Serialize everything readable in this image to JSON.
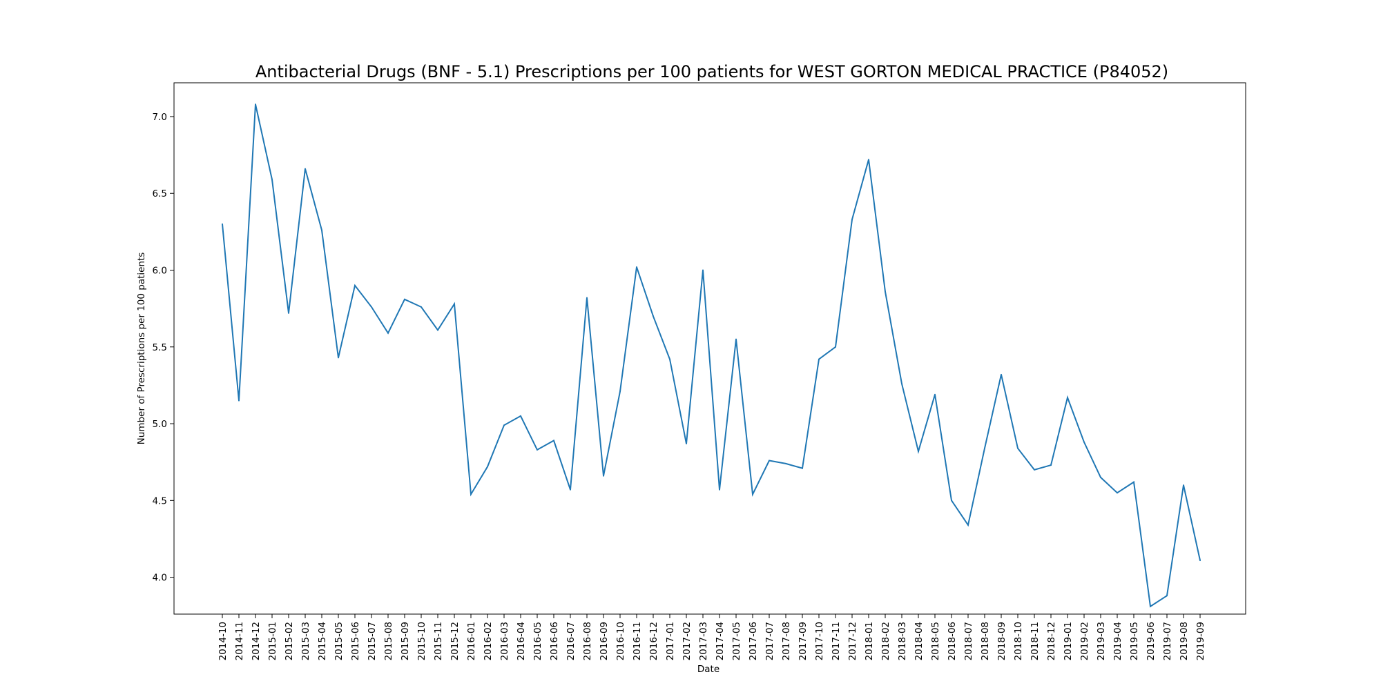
{
  "chart_data": {
    "type": "line",
    "title": "Antibacterial Drugs (BNF - 5.1) Prescriptions per 100 patients for WEST GORTON MEDICAL PRACTICE (P84052)",
    "xlabel": "Date",
    "ylabel": "Number of Prescriptions per 100 patients",
    "ylim": [
      3.76,
      7.22
    ],
    "yticks": [
      "4.0",
      "4.5",
      "5.0",
      "5.5",
      "6.0",
      "6.5",
      "7.0"
    ],
    "grid": false,
    "line_color": "#1f77b4",
    "categories": [
      "2014-10",
      "2014-11",
      "2014-12",
      "2015-01",
      "2015-02",
      "2015-03",
      "2015-04",
      "2015-05",
      "2015-06",
      "2015-07",
      "2015-08",
      "2015-09",
      "2015-10",
      "2015-11",
      "2015-12",
      "2016-01",
      "2016-02",
      "2016-03",
      "2016-04",
      "2016-05",
      "2016-06",
      "2016-07",
      "2016-08",
      "2016-09",
      "2016-10",
      "2016-11",
      "2016-12",
      "2017-01",
      "2017-02",
      "2017-03",
      "2017-04",
      "2017-05",
      "2017-06",
      "2017-07",
      "2017-08",
      "2017-09",
      "2017-10",
      "2017-11",
      "2017-12",
      "2018-01",
      "2018-02",
      "2018-03",
      "2018-04",
      "2018-05",
      "2018-06",
      "2018-07",
      "2018-08",
      "2018-09",
      "2018-10",
      "2018-11",
      "2018-12",
      "2019-01",
      "2019-02",
      "2019-03",
      "2019-04",
      "2019-05",
      "2019-06",
      "2019-07",
      "2019-08",
      "2019-09"
    ],
    "values": [
      6.3,
      5.15,
      7.08,
      6.59,
      5.72,
      6.66,
      6.26,
      5.43,
      5.9,
      5.76,
      5.59,
      5.81,
      5.76,
      5.61,
      5.78,
      4.54,
      4.72,
      4.99,
      5.05,
      4.83,
      4.89,
      4.57,
      5.82,
      4.66,
      5.21,
      6.02,
      5.7,
      5.42,
      4.87,
      6.0,
      4.57,
      5.55,
      4.54,
      4.76,
      4.74,
      4.71,
      5.42,
      5.5,
      6.33,
      6.72,
      5.86,
      5.26,
      4.82,
      5.19,
      4.5,
      4.34,
      4.84,
      5.32,
      4.84,
      4.7,
      4.73,
      5.17,
      4.88,
      4.65,
      4.55,
      4.62,
      3.81,
      3.88,
      4.6,
      4.11
    ]
  }
}
